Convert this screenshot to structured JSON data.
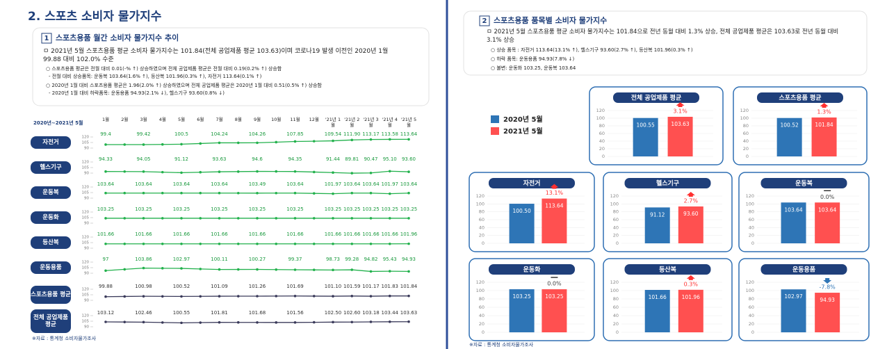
{
  "left": {
    "title": "2. 스포츠 소비자 물가지수",
    "section": {
      "number": "1",
      "title": "스포츠용품 월간 소비자 물가지수 추이"
    },
    "bullets": [
      "ㅁ 2021년 5월 스포츠용품 평균 소비자 물가지수는 101.84(전체 공업제품 평균 103.63)이며 코로나19 발생 이전인 2020년 1월 99.88 대비 102.0% 수준",
      "○ 스포츠용품 평균은 전월 대비 0.01(-% ↑) 상승하였으며 전체 공업제품 평균은 전월 대비 0.19(0.2% ↑) 상승함",
      "- 전월 대비 상승품목: 운동복 103.64(1.6% ↑), 등산복 101.96(0.3% ↑), 자전거 113.64(0.1% ↑)",
      "○ 2020년 1월 대비 스포츠용품 평균은 1.96(2.0% ↑) 상승하였으며 전체 공업제품 평균은 2020년 1월 대비 0.51(0.5% ↑) 상승함",
      "- 2020년 1월 대비 하락품목: 운동용품 94.93(2.1% ↓), 헬스기구 93.60(0.8% ↓)"
    ],
    "chart": {
      "period": "2020년~2021년 5월",
      "months": [
        "1월",
        "2월",
        "3월",
        "4월",
        "5월",
        "6월",
        "7월",
        "8월",
        "9월",
        "10월",
        "11월",
        "12월",
        "'21년 1월",
        "'21년 2월",
        "'21년 3월",
        "'21년 4월",
        "'21년 5월"
      ],
      "ylim": [
        90,
        120
      ],
      "yticks": [
        90,
        105,
        120
      ],
      "rows": [
        {
          "name": "자전거",
          "color": "#22b14c",
          "values": [
            99.4,
            99.4,
            99.42,
            99.9,
            100.5,
            102.3,
            104.24,
            104.2,
            104.26,
            106,
            107.85,
            108.5,
            109.54,
            111.9,
            113.17,
            113.58,
            113.64
          ],
          "value_labels": [
            "99.4",
            null,
            "99.42",
            null,
            "100.5",
            null,
            "104.24",
            null,
            "104.26",
            null,
            "107.85",
            null,
            "109.54",
            "111.90",
            "113.17",
            "113.58",
            "113.64"
          ]
        },
        {
          "name": "헬스기구",
          "color": "#22b14c",
          "values": [
            94.33,
            94.2,
            94.05,
            92.6,
            91.12,
            92.4,
            93.63,
            94.1,
            94.6,
            94.5,
            94.35,
            92.9,
            91.44,
            89.81,
            90.47,
            95.1,
            93.6
          ],
          "value_labels": [
            "94.33",
            null,
            "94.05",
            null,
            "91.12",
            null,
            "93.63",
            null,
            "94.6",
            null,
            "94.35",
            null,
            "91.44",
            "89.81",
            "90.47",
            "95.10",
            "93.60"
          ]
        },
        {
          "name": "운동복",
          "color": "#22b14c",
          "values": [
            103.64,
            103.64,
            103.64,
            103.64,
            103.64,
            103.64,
            103.64,
            103.6,
            103.49,
            103.6,
            103.64,
            102.8,
            101.97,
            103.64,
            103.64,
            101.97,
            103.64
          ],
          "value_labels": [
            "103.64",
            null,
            "103.64",
            null,
            "103.64",
            null,
            "103.64",
            null,
            "103.49",
            null,
            "103.64",
            null,
            "101.97",
            "103.64",
            "103.64",
            "101.97",
            "103.64"
          ]
        },
        {
          "name": "운동화",
          "color": "#22b14c",
          "values": [
            103.25,
            103.25,
            103.25,
            103.25,
            103.25,
            103.25,
            103.25,
            103.25,
            103.25,
            103.25,
            103.25,
            103.25,
            103.25,
            103.25,
            103.25,
            103.25,
            103.25
          ],
          "value_labels": [
            "103.25",
            null,
            "103.25",
            null,
            "103.25",
            null,
            "103.25",
            null,
            "103.25",
            null,
            "103.25",
            null,
            "103.25",
            "103.25",
            "103.25",
            "103.25",
            "103.25"
          ]
        },
        {
          "name": "등산복",
          "color": "#22b14c",
          "values": [
            101.66,
            101.66,
            101.66,
            101.66,
            101.66,
            101.66,
            101.66,
            101.66,
            101.66,
            101.66,
            101.66,
            101.66,
            101.66,
            101.66,
            101.66,
            101.66,
            101.96
          ],
          "value_labels": [
            "101.66",
            null,
            "101.66",
            null,
            "101.66",
            null,
            "101.66",
            null,
            "101.66",
            null,
            "101.66",
            null,
            "101.66",
            "101.66",
            "101.66",
            "101.66",
            "101.96"
          ]
        },
        {
          "name": "운동용품",
          "color": "#22b14c",
          "values": [
            97,
            100.5,
            103.86,
            103.4,
            102.97,
            101.5,
            100.11,
            100.2,
            100.27,
            99.8,
            99.37,
            99.05,
            98.73,
            99.28,
            94.82,
            95.43,
            94.93
          ],
          "value_labels": [
            "97",
            null,
            "103.86",
            null,
            "102.97",
            null,
            "100.11",
            null,
            "100.27",
            null,
            "99.37",
            null,
            "98.73",
            "99.28",
            "94.82",
            "95.43",
            "94.93"
          ]
        },
        {
          "name": "스포츠용품 평균",
          "color": "#3a3a5a",
          "values": [
            99.88,
            100.4,
            100.98,
            100.75,
            100.52,
            100.8,
            101.09,
            101.2,
            101.26,
            101.5,
            101.69,
            101.4,
            101.1,
            101.59,
            101.17,
            101.83,
            101.84
          ],
          "value_labels": [
            "99.88",
            null,
            "100.98",
            null,
            "100.52",
            null,
            "101.09",
            null,
            "101.26",
            null,
            "101.69",
            null,
            "101.10",
            "101.59",
            "101.17",
            "101.83",
            "101.84"
          ]
        },
        {
          "name": "전체 공업제품 평균",
          "color": "#3a3a5a",
          "values": [
            103.12,
            102.8,
            102.46,
            101.5,
            100.55,
            101.2,
            101.81,
            101.75,
            101.68,
            101.6,
            101.56,
            102,
            102.5,
            102.6,
            103.18,
            103.44,
            103.63
          ],
          "value_labels": [
            "103.12",
            null,
            "102.46",
            null,
            "100.55",
            null,
            "101.81",
            null,
            "101.68",
            null,
            "101.56",
            null,
            "102.50",
            "102.60",
            "103.18",
            "103.44",
            "103.63"
          ]
        }
      ]
    },
    "source": "※자료 : 통계청 소비자물가조사"
  },
  "right": {
    "section": {
      "number": "2",
      "title": "스포츠용품 품목별 소비자 물가지수"
    },
    "bullets": [
      "ㅁ 2021년 5월 스포츠용품 평균 소비자 물가지수는 101.84으로 전년 동월 대비 1.3% 상승, 전체 공업제품 평균은 103.63로 전년 동월 대비 3.1% 상승",
      "○ 상승 품목 : 자전거 113.64(13.1% ↑), 헬스기구 93.60(2.7% ↑), 등산복 101.96(0.3% ↑)",
      "○ 하락 품목: 운동용품 94.93(7.8% ↓)",
      "○ 불변: 운동화 103.25, 운동복 103.64"
    ],
    "chart": {
      "legend": [
        {
          "name": "2020년 5월",
          "color": "#2e75b6"
        },
        {
          "name": "2021년 5월",
          "color": "#ff5050"
        }
      ],
      "ylim": [
        0,
        120
      ],
      "yticks": [
        0,
        20,
        40,
        60,
        80,
        100,
        120
      ],
      "panels": [
        {
          "name": "전체 공업제품 평균",
          "values": [
            100.55,
            103.63
          ],
          "value_labels": [
            "100.55",
            "103.63"
          ],
          "change": "3.1%"
        },
        {
          "name": "스포츠용품 평균",
          "values": [
            100.52,
            101.84
          ],
          "value_labels": [
            "100.52",
            "101.84"
          ],
          "change": "1.3%"
        },
        {
          "name": "자전거",
          "values": [
            100.5,
            113.64
          ],
          "value_labels": [
            "100.50",
            "113.64"
          ],
          "change": "13.1%"
        },
        {
          "name": "헬스기구",
          "values": [
            91.12,
            93.6
          ],
          "value_labels": [
            "91.12",
            "93.60"
          ],
          "change": "2.7%"
        },
        {
          "name": "운동복",
          "values": [
            103.64,
            103.64
          ],
          "value_labels": [
            "103.64",
            "103.64"
          ],
          "change": "0.0%"
        },
        {
          "name": "운동화",
          "values": [
            103.25,
            103.25
          ],
          "value_labels": [
            "103.25",
            "103.25"
          ],
          "change": "0.0%"
        },
        {
          "name": "등산복",
          "values": [
            101.66,
            101.96
          ],
          "value_labels": [
            "101.66",
            "101.96"
          ],
          "change": "0.3%"
        },
        {
          "name": "운동용품",
          "values": [
            102.97,
            94.93
          ],
          "value_labels": [
            "102.97",
            "94.93"
          ],
          "change": "-7.8%"
        }
      ]
    },
    "source": "※자료 : 통계청 소비자물가조사"
  }
}
